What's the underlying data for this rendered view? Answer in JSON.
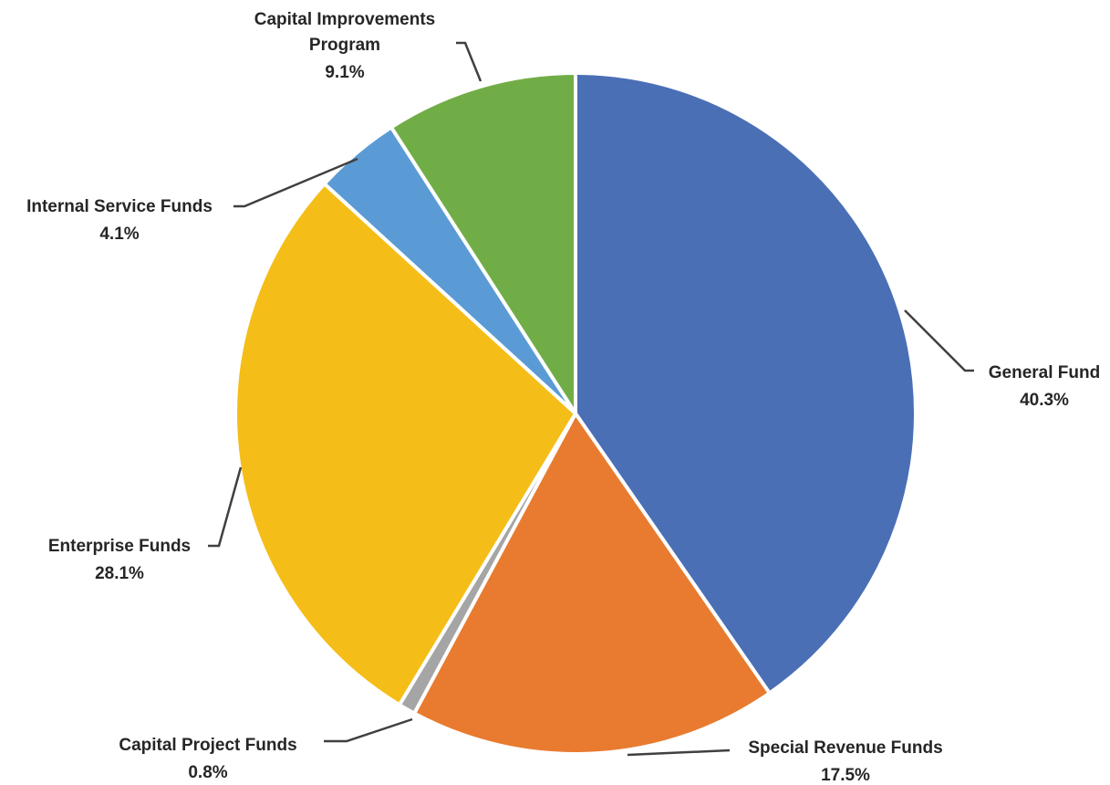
{
  "chart_data": {
    "type": "pie",
    "title": "",
    "start_angle_deg": 0,
    "direction": "clockwise",
    "slices": [
      {
        "name": "General Fund",
        "value": 40.3,
        "value_label": "40.3%",
        "color": "#4A6FB5"
      },
      {
        "name": "Special Revenue Funds",
        "value": 17.5,
        "value_label": "17.5%",
        "color": "#E87B30"
      },
      {
        "name": "Capital Project Funds",
        "value": 0.8,
        "value_label": "0.8%",
        "color": "#A5A5A5"
      },
      {
        "name": "Enterprise Funds",
        "value": 28.1,
        "value_label": "28.1%",
        "color": "#F5BD17"
      },
      {
        "name": "Internal Service Funds",
        "value": 4.1,
        "value_label": "4.1%",
        "color": "#5B9BD5"
      },
      {
        "name": "Capital Improvements Program",
        "value": 9.1,
        "value_label": "9.1%",
        "color": "#71AD47"
      }
    ],
    "legend": "none",
    "labels": "outside with leader lines"
  }
}
